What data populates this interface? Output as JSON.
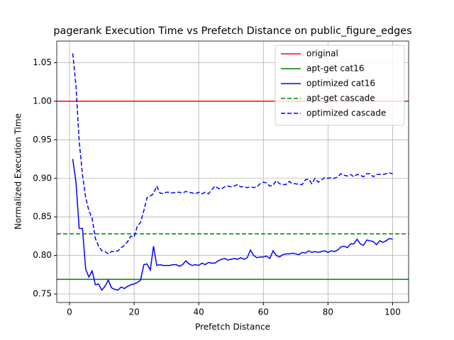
{
  "chart_data": {
    "type": "line",
    "title": "pagerank Execution Time vs Prefetch Distance on public_figure_edges",
    "x_label": "Prefetch Distance",
    "y_label": "Normalized Execution Time",
    "x": [
      1,
      2,
      3,
      4,
      5,
      6,
      7,
      8,
      9,
      10,
      11,
      12,
      13,
      14,
      15,
      16,
      17,
      18,
      19,
      20,
      21,
      22,
      23,
      24,
      25,
      26,
      27,
      28,
      29,
      30,
      31,
      32,
      33,
      34,
      35,
      36,
      37,
      38,
      39,
      40,
      41,
      42,
      43,
      44,
      45,
      46,
      47,
      48,
      49,
      50,
      51,
      52,
      53,
      54,
      55,
      56,
      57,
      58,
      59,
      60,
      61,
      62,
      63,
      64,
      65,
      66,
      67,
      68,
      69,
      70,
      71,
      72,
      73,
      74,
      75,
      76,
      77,
      78,
      79,
      80,
      81,
      82,
      83,
      84,
      85,
      86,
      87,
      88,
      89,
      90,
      91,
      92,
      93,
      94,
      95,
      96,
      97,
      98,
      99,
      100
    ],
    "series": [
      {
        "name": "original",
        "color": "#ff0000",
        "style": "solid",
        "value": 1.0
      },
      {
        "name": "apt-get cat16",
        "color": "#008000",
        "style": "solid",
        "value": 0.769
      },
      {
        "name": "optimized cat16",
        "color": "#0000ff",
        "style": "solid",
        "values": [
          0.925,
          0.895,
          0.835,
          0.835,
          0.782,
          0.772,
          0.78,
          0.762,
          0.763,
          0.755,
          0.76,
          0.768,
          0.758,
          0.756,
          0.755,
          0.759,
          0.757,
          0.76,
          0.762,
          0.763,
          0.765,
          0.768,
          0.788,
          0.789,
          0.781,
          0.812,
          0.787,
          0.788,
          0.787,
          0.787,
          0.787,
          0.788,
          0.788,
          0.786,
          0.788,
          0.793,
          0.789,
          0.787,
          0.788,
          0.787,
          0.79,
          0.788,
          0.791,
          0.79,
          0.79,
          0.793,
          0.795,
          0.796,
          0.794,
          0.795,
          0.796,
          0.795,
          0.797,
          0.795,
          0.797,
          0.807,
          0.8,
          0.797,
          0.798,
          0.798,
          0.799,
          0.796,
          0.806,
          0.8,
          0.798,
          0.801,
          0.802,
          0.802,
          0.803,
          0.802,
          0.801,
          0.804,
          0.803,
          0.806,
          0.804,
          0.805,
          0.804,
          0.805,
          0.806,
          0.804,
          0.806,
          0.805,
          0.807,
          0.811,
          0.812,
          0.81,
          0.815,
          0.815,
          0.821,
          0.815,
          0.813,
          0.82,
          0.819,
          0.818,
          0.814,
          0.819,
          0.817,
          0.819,
          0.822,
          0.821
        ]
      },
      {
        "name": "apt-get cascade",
        "color": "#008000",
        "style": "dashed",
        "value": 0.828
      },
      {
        "name": "optimized cascade",
        "color": "#0000ff",
        "style": "dashed",
        "values": [
          1.062,
          1.02,
          0.948,
          0.905,
          0.875,
          0.858,
          0.848,
          0.822,
          0.812,
          0.806,
          0.805,
          0.802,
          0.805,
          0.805,
          0.806,
          0.81,
          0.813,
          0.818,
          0.825,
          0.824,
          0.838,
          0.843,
          0.858,
          0.875,
          0.877,
          0.88,
          0.89,
          0.881,
          0.88,
          0.882,
          0.882,
          0.881,
          0.882,
          0.882,
          0.881,
          0.883,
          0.882,
          0.881,
          0.88,
          0.882,
          0.88,
          0.882,
          0.88,
          0.885,
          0.89,
          0.887,
          0.886,
          0.889,
          0.89,
          0.889,
          0.89,
          0.892,
          0.889,
          0.889,
          0.888,
          0.889,
          0.888,
          0.889,
          0.893,
          0.895,
          0.894,
          0.89,
          0.891,
          0.897,
          0.893,
          0.892,
          0.892,
          0.896,
          0.893,
          0.893,
          0.892,
          0.892,
          0.898,
          0.899,
          0.893,
          0.9,
          0.895,
          0.898,
          0.901,
          0.9,
          0.901,
          0.9,
          0.902,
          0.906,
          0.904,
          0.903,
          0.905,
          0.902,
          0.905,
          0.904,
          0.902,
          0.906,
          0.906,
          0.902,
          0.905,
          0.905,
          0.905,
          0.906,
          0.907,
          0.906
        ]
      }
    ],
    "xlim": [
      -3.95,
      104.95
    ],
    "ylim": [
      0.739,
      1.078
    ],
    "xticks": [
      0,
      20,
      40,
      60,
      80,
      100
    ],
    "yticks": [
      0.75,
      {
        "value": 0.8,
        "label": "0.80"
      },
      0.85,
      {
        "value": 0.9,
        "label": "0.90"
      },
      0.95,
      {
        "value": 1.0,
        "label": "1.00"
      },
      1.05
    ],
    "grid": true,
    "legend": "upper right"
  }
}
